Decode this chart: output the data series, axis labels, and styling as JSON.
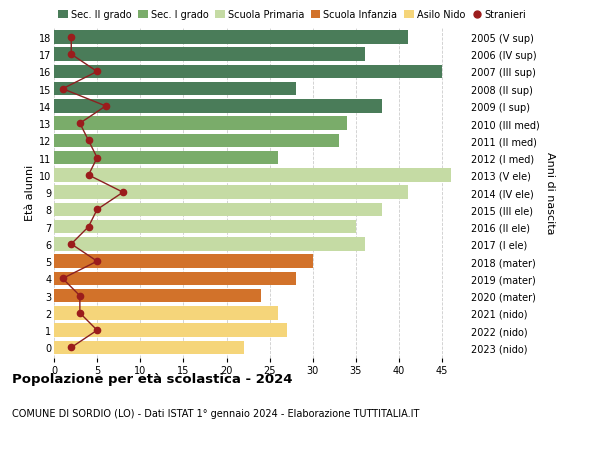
{
  "ages": [
    18,
    17,
    16,
    15,
    14,
    13,
    12,
    11,
    10,
    9,
    8,
    7,
    6,
    5,
    4,
    3,
    2,
    1,
    0
  ],
  "years": [
    "2005 (V sup)",
    "2006 (IV sup)",
    "2007 (III sup)",
    "2008 (II sup)",
    "2009 (I sup)",
    "2010 (III med)",
    "2011 (II med)",
    "2012 (I med)",
    "2013 (V ele)",
    "2014 (IV ele)",
    "2015 (III ele)",
    "2016 (II ele)",
    "2017 (I ele)",
    "2018 (mater)",
    "2019 (mater)",
    "2020 (mater)",
    "2021 (nido)",
    "2022 (nido)",
    "2023 (nido)"
  ],
  "bar_values": [
    41,
    36,
    45,
    28,
    38,
    34,
    33,
    26,
    46,
    41,
    38,
    35,
    36,
    30,
    28,
    24,
    26,
    27,
    22
  ],
  "bar_colors": [
    "#4a7c59",
    "#4a7c59",
    "#4a7c59",
    "#4a7c59",
    "#4a7c59",
    "#7aac6a",
    "#7aac6a",
    "#7aac6a",
    "#c5dba4",
    "#c5dba4",
    "#c5dba4",
    "#c5dba4",
    "#c5dba4",
    "#d2722a",
    "#d2722a",
    "#d2722a",
    "#f5d57a",
    "#f5d57a",
    "#f5d57a"
  ],
  "stranieri": [
    2,
    2,
    5,
    1,
    6,
    3,
    4,
    5,
    4,
    8,
    5,
    4,
    2,
    5,
    1,
    3,
    3,
    5,
    2
  ],
  "stranieri_color": "#9b1c1c",
  "stranieri_line_color": "#8b2020",
  "xlim": [
    0,
    48
  ],
  "xticks": [
    0,
    5,
    10,
    15,
    20,
    25,
    30,
    35,
    40,
    45
  ],
  "ylabel_left": "Età alunni",
  "ylabel_right": "Anni di nascita",
  "title": "Popolazione per età scolastica - 2024",
  "subtitle": "COMUNE DI SORDIO (LO) - Dati ISTAT 1° gennaio 2024 - Elaborazione TUTTITALIA.IT",
  "legend_items": [
    "Sec. II grado",
    "Sec. I grado",
    "Scuola Primaria",
    "Scuola Infanzia",
    "Asilo Nido",
    "Stranieri"
  ],
  "legend_colors": [
    "#4a7c59",
    "#7aac6a",
    "#c5dba4",
    "#d2722a",
    "#f5d57a",
    "#9b1c1c"
  ],
  "bg_color": "#ffffff",
  "grid_color": "#cccccc",
  "bar_height": 0.78
}
